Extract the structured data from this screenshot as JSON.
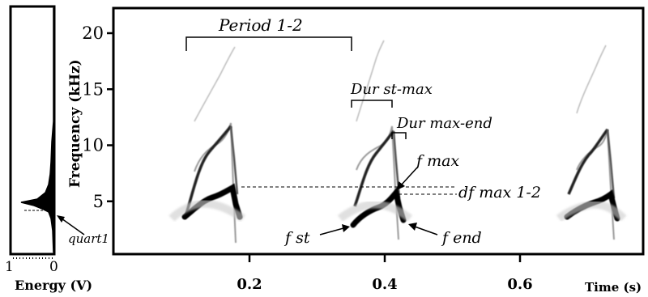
{
  "energy_panel": {
    "xlabel": "Energy (V)",
    "tick_left": "1",
    "tick_right": "0",
    "annotation": "quart1"
  },
  "spectrogram": {
    "ylabel": "Frequency (kHz)",
    "xlabel": "Time (s)",
    "y_ticks": [
      {
        "value": 5,
        "label": "5"
      },
      {
        "value": 10,
        "label": "10"
      },
      {
        "value": 15,
        "label": "15"
      },
      {
        "value": 20,
        "label": "20"
      }
    ],
    "x_ticks": [
      {
        "value": 0.2,
        "label": "0.2"
      },
      {
        "value": 0.4,
        "label": "0.4"
      },
      {
        "value": 0.6,
        "label": "0.6"
      }
    ],
    "xlim": [
      0.0,
      0.8
    ],
    "ylim": [
      0,
      22
    ],
    "annotations": {
      "period": "Period 1-2",
      "dur_st_max": "Dur st-max",
      "dur_max_end": "Dur max-end",
      "fmax": "f max",
      "df": "df max 1-2",
      "fst": "f st",
      "fend": "f end"
    }
  }
}
